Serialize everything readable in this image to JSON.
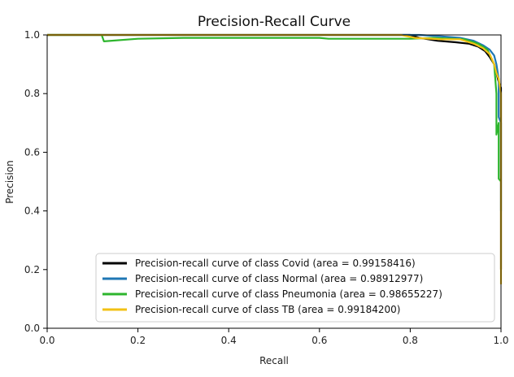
{
  "chart_data": {
    "type": "line",
    "title": "Precision-Recall Curve",
    "xlabel": "Recall",
    "ylabel": "Precision",
    "xlim": [
      0.0,
      1.0
    ],
    "ylim": [
      0.0,
      1.0
    ],
    "x_ticks": [
      "0.0",
      "0.2",
      "0.4",
      "0.6",
      "0.8",
      "1.0"
    ],
    "y_ticks": [
      "0.0",
      "0.2",
      "0.4",
      "0.6",
      "0.8",
      "1.0"
    ],
    "grid": false,
    "legend_position": "lower-right",
    "series": [
      {
        "name": "Precision-recall curve of class Covid (area = 0.99158416)",
        "color": "#000000",
        "points": [
          [
            0.0,
            1.0
          ],
          [
            0.8,
            1.0
          ],
          [
            0.82,
            0.99
          ],
          [
            0.86,
            0.98
          ],
          [
            0.9,
            0.975
          ],
          [
            0.93,
            0.97
          ],
          [
            0.95,
            0.96
          ],
          [
            0.965,
            0.945
          ],
          [
            0.975,
            0.925
          ],
          [
            0.985,
            0.9
          ],
          [
            0.99,
            0.87
          ],
          [
            0.995,
            0.84
          ],
          [
            1.0,
            0.82
          ],
          [
            1.0,
            0.2
          ]
        ]
      },
      {
        "name": "Precision-recall curve of class Normal (area = 0.98912977)",
        "color": "#1f77b4",
        "points": [
          [
            0.0,
            1.0
          ],
          [
            0.82,
            1.0
          ],
          [
            0.87,
            0.995
          ],
          [
            0.91,
            0.99
          ],
          [
            0.94,
            0.98
          ],
          [
            0.96,
            0.965
          ],
          [
            0.975,
            0.95
          ],
          [
            0.985,
            0.93
          ],
          [
            0.99,
            0.9
          ],
          [
            0.995,
            0.85
          ],
          [
            0.995,
            0.72
          ],
          [
            1.0,
            0.7
          ],
          [
            1.0,
            0.4
          ]
        ]
      },
      {
        "name": "Precision-recall curve of class Pneumonia (area = 0.98655227)",
        "color": "#2db52d",
        "points": [
          [
            0.0,
            1.0
          ],
          [
            0.12,
            1.0
          ],
          [
            0.125,
            0.978
          ],
          [
            0.2,
            0.987
          ],
          [
            0.3,
            0.99
          ],
          [
            0.6,
            0.99
          ],
          [
            0.62,
            0.987
          ],
          [
            0.8,
            0.987
          ],
          [
            0.85,
            0.99
          ],
          [
            0.92,
            0.985
          ],
          [
            0.95,
            0.97
          ],
          [
            0.97,
            0.95
          ],
          [
            0.985,
            0.9
          ],
          [
            0.99,
            0.8
          ],
          [
            0.99,
            0.66
          ],
          [
            0.995,
            0.7
          ],
          [
            0.995,
            0.51
          ],
          [
            1.0,
            0.5
          ]
        ]
      },
      {
        "name": "Precision-recall curve of class TB (area = 0.99184200)",
        "color": "#f2c114",
        "points": [
          [
            0.0,
            1.0
          ],
          [
            0.78,
            1.0
          ],
          [
            0.81,
            0.99
          ],
          [
            0.87,
            0.985
          ],
          [
            0.91,
            0.985
          ],
          [
            0.94,
            0.97
          ],
          [
            0.96,
            0.955
          ],
          [
            0.975,
            0.935
          ],
          [
            0.985,
            0.9
          ],
          [
            0.99,
            0.87
          ],
          [
            0.995,
            0.85
          ],
          [
            1.0,
            0.8
          ],
          [
            1.0,
            0.15
          ]
        ]
      }
    ]
  }
}
